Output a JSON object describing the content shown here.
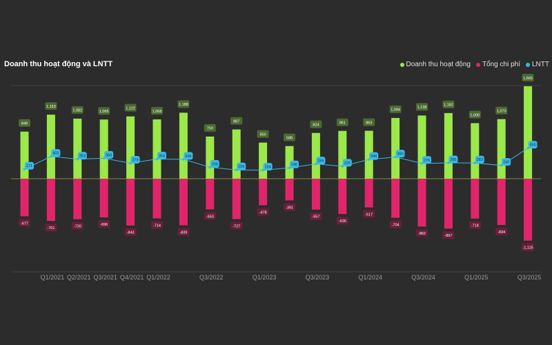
{
  "chart_data": {
    "type": "bar",
    "title": "Doanh thu hoạt động và LNTT",
    "series": [
      {
        "name": "Doanh thu hoạt động",
        "color": "#9be84a",
        "values": [
          848,
          1153,
          1082,
          1065,
          1122,
          1068,
          1188,
          759,
          887,
          650,
          588,
          824,
          861,
          863,
          1094,
          1138,
          1182,
          1000,
          1073,
          1665
        ]
      },
      {
        "name": "Tổng chi phí",
        "color": "#e0256a",
        "values": [
          -677,
          -761,
          -730,
          -696,
          -843,
          -714,
          -839,
          -553,
          -727,
          -478,
          -391,
          -557,
          -636,
          -517,
          -704,
          -862,
          -897,
          -718,
          -834,
          -1115
        ]
      },
      {
        "name": "LNTT",
        "color": "#3db8e6",
        "values": [
          171,
          402,
          353,
          368,
          279,
          354,
          349,
          206,
          159,
          154,
          196,
          266,
          225,
          346,
          390,
          276,
          285,
          283,
          240,
          550
        ]
      }
    ],
    "x_tick_labels": [
      "",
      "Q1/2021",
      "Q2/2021",
      "Q3/2021",
      "Q4/2021",
      "Q1/2022",
      "",
      "Q3/2022",
      "",
      "Q1/2023",
      "",
      "Q3/2023",
      "",
      "Q1/2024",
      "",
      "Q3/2024",
      "",
      "Q1/2025",
      "",
      "Q3/2025"
    ],
    "ylim": [
      -1750,
      1750
    ],
    "grid": true,
    "legend_position": "top-right"
  }
}
